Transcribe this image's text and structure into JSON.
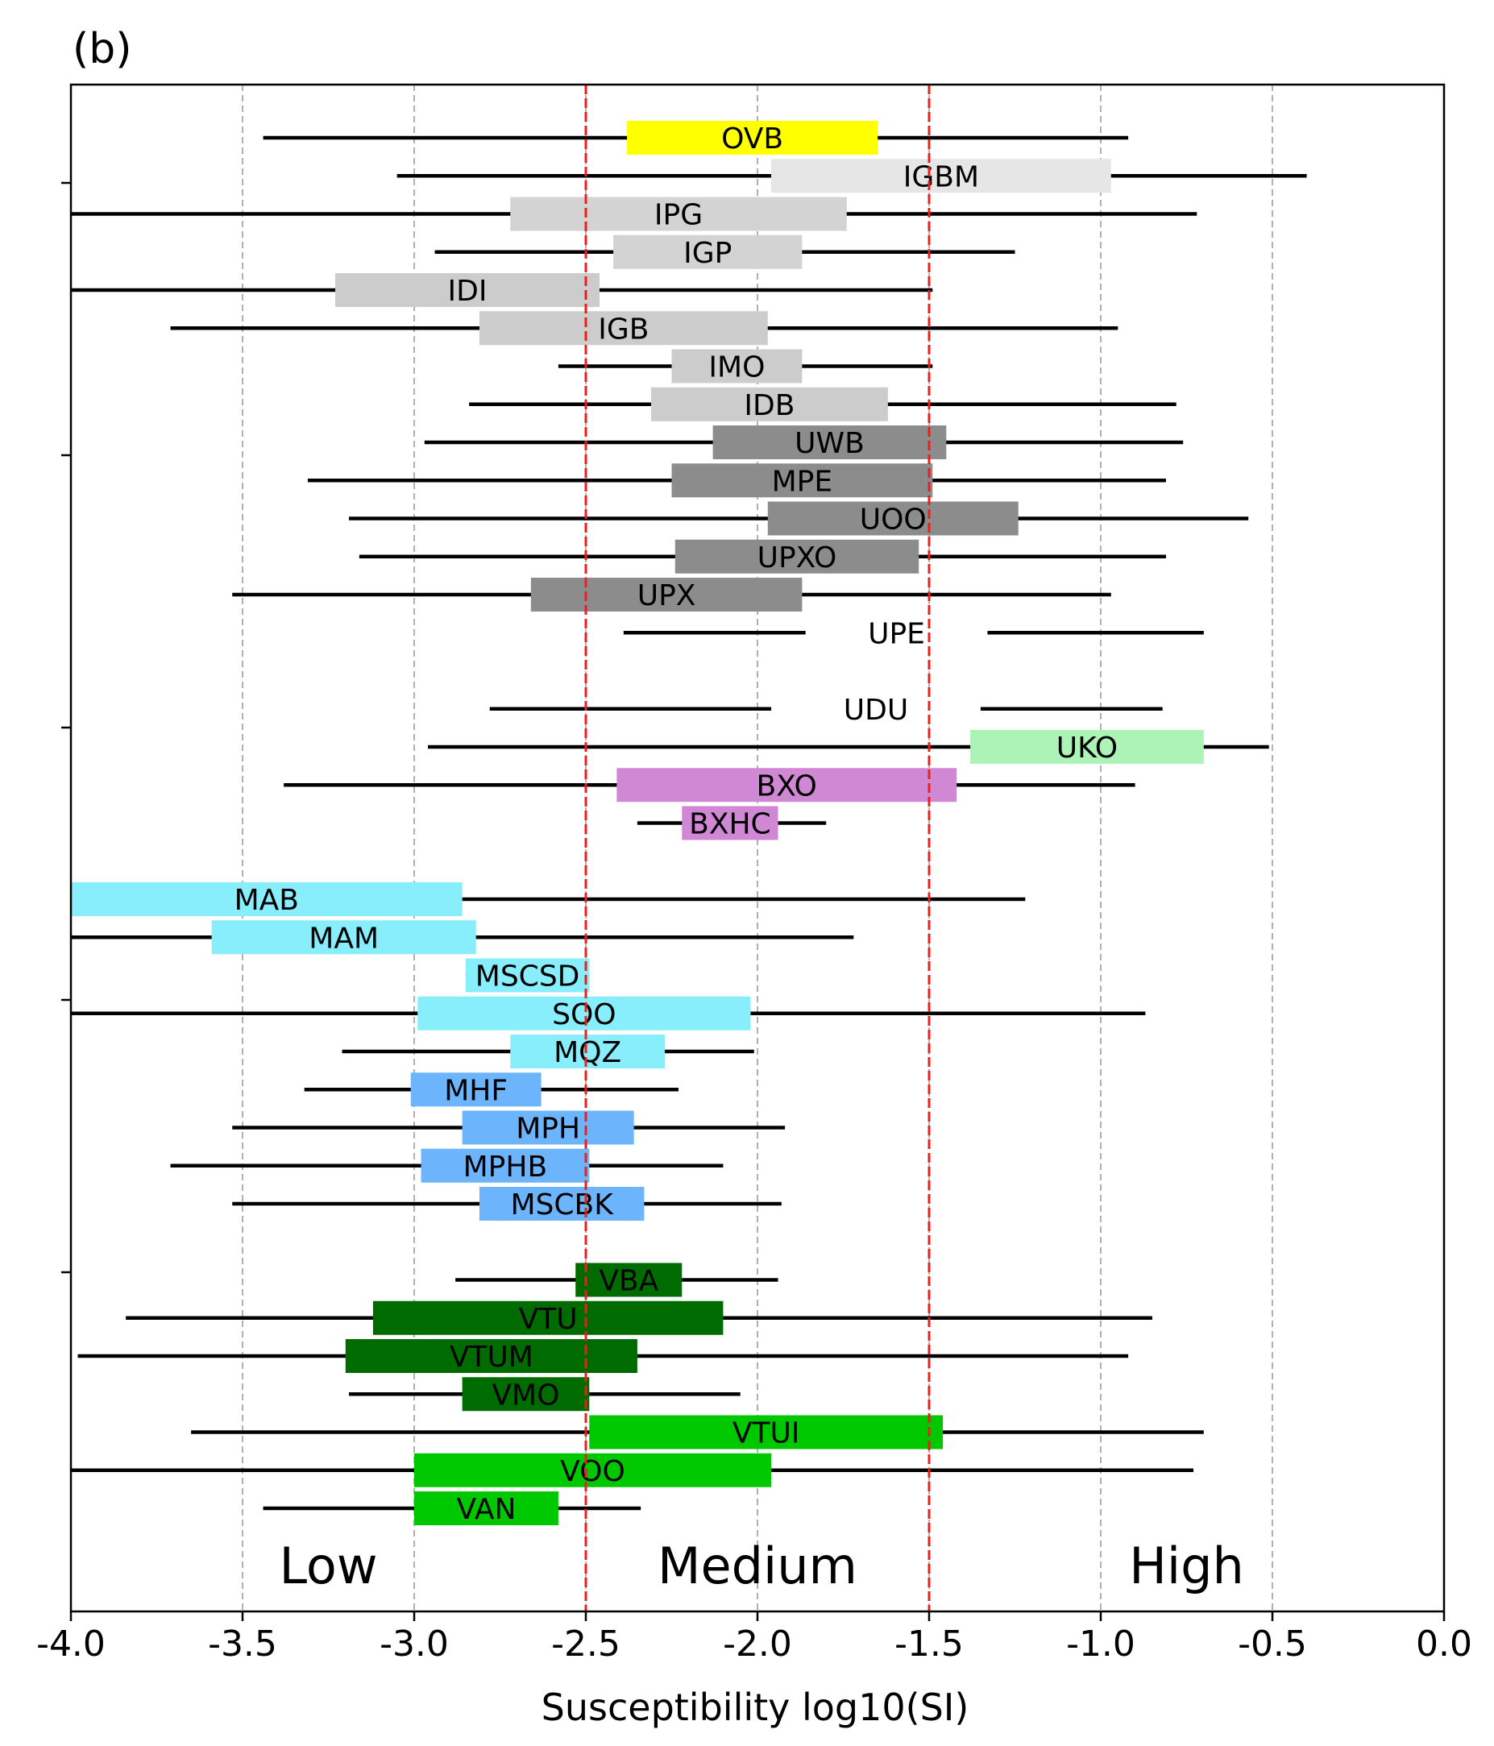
{
  "panel_label": "(b)",
  "chart_data": {
    "type": "boxplot",
    "title": "",
    "xlabel": "Susceptibility log10(SI)",
    "xlim": [
      -4.0,
      0.0
    ],
    "xticks": [
      -4.0,
      -3.5,
      -3.0,
      -2.5,
      -2.0,
      -1.5,
      -1.0,
      -0.5,
      0.0
    ],
    "xtick_labels": [
      "-4.0",
      "-3.5",
      "-3.0",
      "-2.5",
      "-2.0",
      "-1.5",
      "-1.0",
      "-0.5",
      "0.0"
    ],
    "grid": "vertical dashed at each x tick",
    "thresholds": [
      -2.5,
      -1.5
    ],
    "threshold_color": "#e8201c",
    "zones": [
      {
        "label": "Low",
        "x": -3.25
      },
      {
        "label": "Medium",
        "x": -2.0
      },
      {
        "label": "High",
        "x": -0.75
      }
    ],
    "series": [
      {
        "name": "OVB",
        "row": 1,
        "whisker": [
          -3.44,
          -0.92
        ],
        "box": [
          -2.38,
          -1.65
        ],
        "color": "#ffff00"
      },
      {
        "name": "IGBM",
        "row": 2,
        "whisker": [
          -3.05,
          -0.4
        ],
        "box": [
          -1.96,
          -0.97
        ],
        "color": "#e6e6e6"
      },
      {
        "name": "IPG",
        "row": 3,
        "whisker": [
          -4.0,
          -0.72
        ],
        "box": [
          -2.72,
          -1.74
        ],
        "color": "#d3d3d3"
      },
      {
        "name": "IGP",
        "row": 4,
        "whisker": [
          -2.94,
          -1.25
        ],
        "box": [
          -2.42,
          -1.87
        ],
        "color": "#d3d3d3"
      },
      {
        "name": "IDI",
        "row": 5,
        "whisker": [
          -4.0,
          -1.49
        ],
        "box": [
          -3.23,
          -2.46
        ],
        "color": "#cccccc"
      },
      {
        "name": "IGB",
        "row": 6,
        "whisker": [
          -3.71,
          -0.95
        ],
        "box": [
          -2.81,
          -1.97
        ],
        "color": "#cccccc"
      },
      {
        "name": "IMO",
        "row": 7,
        "whisker": [
          -2.58,
          -1.49
        ],
        "box": [
          -2.25,
          -1.87
        ],
        "color": "#cccccc"
      },
      {
        "name": "IDB",
        "row": 8,
        "whisker": [
          -2.84,
          -0.78
        ],
        "box": [
          -2.31,
          -1.62
        ],
        "color": "#cccccc"
      },
      {
        "name": "UWB",
        "row": 9,
        "whisker": [
          -2.97,
          -0.76
        ],
        "box": [
          -2.13,
          -1.45
        ],
        "color": "#8c8c8c"
      },
      {
        "name": "MPE",
        "row": 10,
        "whisker": [
          -3.31,
          -0.81
        ],
        "box": [
          -2.25,
          -1.49
        ],
        "color": "#8c8c8c"
      },
      {
        "name": "UOO",
        "row": 11,
        "whisker": [
          -3.19,
          -0.57
        ],
        "box": [
          -1.97,
          -1.24
        ],
        "color": "#8c8c8c"
      },
      {
        "name": "UPXO",
        "row": 12,
        "whisker": [
          -3.16,
          -0.81
        ],
        "box": [
          -2.24,
          -1.53
        ],
        "color": "#8c8c8c"
      },
      {
        "name": "UPX",
        "row": 13,
        "whisker": [
          -3.53,
          -0.97
        ],
        "box": [
          -2.66,
          -1.87
        ],
        "color": "#8c8c8c"
      },
      {
        "name": "UPE",
        "row": 14,
        "whisker": [
          -2.39,
          -0.7
        ],
        "box": [
          -1.86,
          -1.33
        ],
        "color": "#ffffff"
      },
      {
        "name": "UDU",
        "row": 16,
        "whisker": [
          -2.78,
          -0.82
        ],
        "box": [
          -1.96,
          -1.35
        ],
        "color": "#ffffff"
      },
      {
        "name": "UKO",
        "row": 17,
        "whisker": [
          -2.96,
          -0.51
        ],
        "box": [
          -1.38,
          -0.7
        ],
        "color": "#adf2b7"
      },
      {
        "name": "BXO",
        "row": 18,
        "whisker": [
          -3.38,
          -0.9
        ],
        "box": [
          -2.41,
          -1.42
        ],
        "color": "#d087d4"
      },
      {
        "name": "BXHC",
        "row": 19,
        "whisker": [
          -2.35,
          -1.8
        ],
        "box": [
          -2.22,
          -1.94
        ],
        "color": "#d087d4"
      },
      {
        "name": "MAB",
        "row": 21,
        "whisker": [
          -4.0,
          -1.22
        ],
        "box": [
          -4.0,
          -2.86
        ],
        "color": "#88eefc"
      },
      {
        "name": "MAM",
        "row": 22,
        "whisker": [
          -4.0,
          -1.72
        ],
        "box": [
          -3.59,
          -2.82
        ],
        "color": "#88eefc"
      },
      {
        "name": "MSCSD",
        "row": 23,
        "whisker": [
          -2.85,
          -2.49
        ],
        "box": [
          -2.85,
          -2.49
        ],
        "color": "#88eefc"
      },
      {
        "name": "SOO",
        "row": 24,
        "whisker": [
          -4.0,
          -0.87
        ],
        "box": [
          -2.99,
          -2.02
        ],
        "color": "#88eefc"
      },
      {
        "name": "MQZ",
        "row": 25,
        "whisker": [
          -3.21,
          -2.01
        ],
        "box": [
          -2.72,
          -2.27
        ],
        "color": "#88eefc"
      },
      {
        "name": "MHF",
        "row": 26,
        "whisker": [
          -3.32,
          -2.23
        ],
        "box": [
          -3.01,
          -2.63
        ],
        "color": "#6cb5fd"
      },
      {
        "name": "MPH",
        "row": 27,
        "whisker": [
          -3.53,
          -1.92
        ],
        "box": [
          -2.86,
          -2.36
        ],
        "color": "#6cb5fd"
      },
      {
        "name": "MPHB",
        "row": 28,
        "whisker": [
          -3.71,
          -2.1
        ],
        "box": [
          -2.98,
          -2.49
        ],
        "color": "#6cb5fd"
      },
      {
        "name": "MSCBK",
        "row": 29,
        "whisker": [
          -3.53,
          -1.93
        ],
        "box": [
          -2.81,
          -2.33
        ],
        "color": "#6cb5fd"
      },
      {
        "name": "VBA",
        "row": 31,
        "whisker": [
          -2.88,
          -1.94
        ],
        "box": [
          -2.53,
          -2.22
        ],
        "color": "#006b00"
      },
      {
        "name": "VTU",
        "row": 32,
        "whisker": [
          -3.84,
          -0.85
        ],
        "box": [
          -3.12,
          -2.1
        ],
        "color": "#006b00"
      },
      {
        "name": "VTUM",
        "row": 33,
        "whisker": [
          -3.98,
          -0.92
        ],
        "box": [
          -3.2,
          -2.35
        ],
        "color": "#006b00"
      },
      {
        "name": "VMO",
        "row": 34,
        "whisker": [
          -3.19,
          -2.05
        ],
        "box": [
          -2.86,
          -2.49
        ],
        "color": "#006b00"
      },
      {
        "name": "VTUI",
        "row": 35,
        "whisker": [
          -3.65,
          -0.7
        ],
        "box": [
          -2.49,
          -1.46
        ],
        "color": "#00c800"
      },
      {
        "name": "VOO",
        "row": 36,
        "whisker": [
          -4.0,
          -0.73
        ],
        "box": [
          -3.0,
          -1.96
        ],
        "color": "#00c800"
      },
      {
        "name": "VAN",
        "row": 37,
        "whisker": [
          -3.44,
          -2.34
        ],
        "box": [
          -3.0,
          -2.58
        ],
        "color": "#00c800"
      }
    ]
  }
}
